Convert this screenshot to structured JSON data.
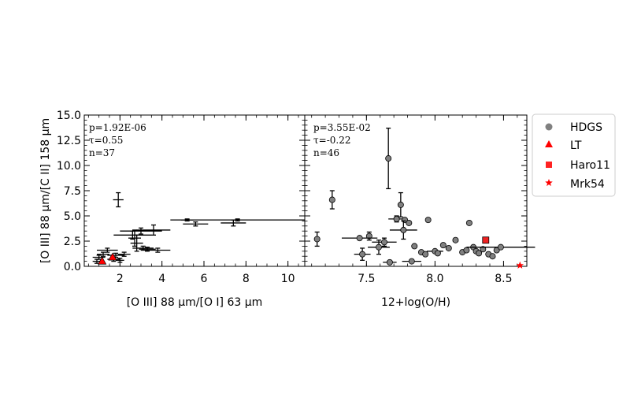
{
  "chart_data": [
    {
      "type": "scatter",
      "xlabel": "[O III] 88 μm/[O I] 63 μm",
      "ylabel": "[O III] 88 μm/[C II] 158 μm",
      "xlim": [
        0.3,
        10.8
      ],
      "ylim": [
        0,
        15
      ],
      "xticks": [
        "2",
        "4",
        "6",
        "8",
        "10"
      ],
      "yticks": [
        "0.0",
        "2.5",
        "5.0",
        "7.5",
        "10.0",
        "12.5",
        "15.0"
      ],
      "stats": [
        "p=1.92E-06",
        "τ=0.55",
        "n=37"
      ],
      "series": [
        {
          "name": "HDGS",
          "points": [
            {
              "x": 1.92,
              "y": 6.6,
              "xerr": 0.25,
              "yerr": 0.7
            },
            {
              "x": 2.6,
              "y": 3.1,
              "xerr": 0.9,
              "yerr": 0.4
            },
            {
              "x": 2.7,
              "y": 2.8,
              "xerr": 0.3,
              "yerr": 0.8
            },
            {
              "x": 2.8,
              "y": 2.3,
              "xerr": 0.3,
              "yerr": 0.8
            },
            {
              "x": 3.0,
              "y": 3.5,
              "xerr": 1.0,
              "yerr": 0.3
            },
            {
              "x": 3.6,
              "y": 3.6,
              "xerr": 0.8,
              "yerr": 0.5
            },
            {
              "x": 3.1,
              "y": 1.8,
              "xerr": 0.5,
              "yerr": 0.2
            },
            {
              "x": 3.3,
              "y": 1.7,
              "xerr": 0.4,
              "yerr": 0.2
            },
            {
              "x": 3.8,
              "y": 1.6,
              "xerr": 0.6,
              "yerr": 0.2
            },
            {
              "x": 2.2,
              "y": 1.2,
              "xerr": 0.3,
              "yerr": 0.2
            },
            {
              "x": 1.8,
              "y": 1.1,
              "xerr": 0.4,
              "yerr": 0.2
            },
            {
              "x": 1.4,
              "y": 1.6,
              "xerr": 0.5,
              "yerr": 0.2
            },
            {
              "x": 1.2,
              "y": 1.2,
              "xerr": 0.3,
              "yerr": 0.2
            },
            {
              "x": 1.0,
              "y": 0.9,
              "xerr": 0.3,
              "yerr": 0.2
            },
            {
              "x": 1.7,
              "y": 0.7,
              "xerr": 0.3,
              "yerr": 0.2
            },
            {
              "x": 2.0,
              "y": 0.6,
              "xerr": 0.2,
              "yerr": 0.2
            },
            {
              "x": 0.9,
              "y": 0.5,
              "xerr": 0.2,
              "yerr": 0.2
            },
            {
              "x": 5.6,
              "y": 4.2,
              "xerr": 0.6,
              "yerr": 0.2
            },
            {
              "x": 7.4,
              "y": 4.3,
              "xerr": 0.6,
              "yerr": 0.3
            },
            {
              "x": 5.2,
              "y": 4.6,
              "xerr": 0.3,
              "yerr": 0.1
            },
            {
              "x": 7.6,
              "y": 4.6,
              "xerr": 3.2,
              "yerr": 0.1
            }
          ]
        },
        {
          "name": "LT",
          "points": [
            {
              "x": 1.15,
              "y": 0.45
            },
            {
              "x": 1.65,
              "y": 0.85
            }
          ]
        }
      ]
    },
    {
      "type": "scatter",
      "xlabel": "12+log(O/H)",
      "ylabel": "",
      "xlim": [
        7.05,
        8.67
      ],
      "ylim": [
        0,
        15
      ],
      "xticks": [
        "7.5",
        "8.0",
        "8.5"
      ],
      "stats": [
        "p=3.55E-02",
        "τ=-0.22",
        "n=46"
      ],
      "series": [
        {
          "name": "HDGS",
          "points": [
            {
              "x": 7.14,
              "y": 2.7,
              "yerr": 0.7
            },
            {
              "x": 7.25,
              "y": 6.6,
              "yerr": 0.9
            },
            {
              "x": 7.66,
              "y": 10.7,
              "yerr": 3.0
            },
            {
              "x": 7.75,
              "y": 6.1,
              "yerr": 1.2
            },
            {
              "x": 7.72,
              "y": 4.7,
              "xerr": 0.06,
              "yerr": 0.3
            },
            {
              "x": 7.78,
              "y": 4.6
            },
            {
              "x": 7.81,
              "y": 4.3
            },
            {
              "x": 7.95,
              "y": 4.6
            },
            {
              "x": 7.77,
              "y": 3.6,
              "xerr": 0.1,
              "yerr": 0.9
            },
            {
              "x": 7.52,
              "y": 3.0,
              "yerr": 0.4
            },
            {
              "x": 7.59,
              "y": 1.9,
              "xerr": 0.08,
              "yerr": 0.7
            },
            {
              "x": 7.63,
              "y": 2.4,
              "xerr": 0.09,
              "yerr": 0.4
            },
            {
              "x": 7.45,
              "y": 2.8,
              "xerr": 0.13
            },
            {
              "x": 7.47,
              "y": 1.2,
              "xerr": 0.06,
              "yerr": 0.6
            },
            {
              "x": 7.85,
              "y": 2.0
            },
            {
              "x": 7.9,
              "y": 1.4
            },
            {
              "x": 7.93,
              "y": 1.2
            },
            {
              "x": 8.0,
              "y": 1.5,
              "xerr": 0.06
            },
            {
              "x": 8.02,
              "y": 1.3
            },
            {
              "x": 8.06,
              "y": 2.1
            },
            {
              "x": 8.1,
              "y": 1.8
            },
            {
              "x": 8.15,
              "y": 2.6
            },
            {
              "x": 8.2,
              "y": 1.4
            },
            {
              "x": 8.23,
              "y": 1.6
            },
            {
              "x": 8.25,
              "y": 4.3
            },
            {
              "x": 8.28,
              "y": 1.9
            },
            {
              "x": 8.3,
              "y": 1.5
            },
            {
              "x": 8.32,
              "y": 1.3
            },
            {
              "x": 8.35,
              "y": 1.7
            },
            {
              "x": 8.39,
              "y": 1.2
            },
            {
              "x": 8.42,
              "y": 1.0
            },
            {
              "x": 8.45,
              "y": 1.6
            },
            {
              "x": 8.48,
              "y": 1.9,
              "xerr": 0.25
            },
            {
              "x": 7.67,
              "y": 0.4,
              "xerr": 0.05
            },
            {
              "x": 7.83,
              "y": 0.5,
              "xerr": 0.07
            }
          ]
        },
        {
          "name": "Haro11",
          "points": [
            {
              "x": 8.37,
              "y": 2.6
            }
          ]
        },
        {
          "name": "Mrk54",
          "points": [
            {
              "x": 8.62,
              "y": 0.1
            }
          ]
        }
      ]
    }
  ],
  "legend": [
    {
      "label": "HDGS",
      "marker": "circle",
      "color": "#808080"
    },
    {
      "label": "LT",
      "marker": "triangle",
      "color": "#ff0000"
    },
    {
      "label": "Haro11",
      "marker": "square",
      "color": "#ff2222"
    },
    {
      "label": "Mrk54",
      "marker": "star",
      "color": "#ff0000"
    }
  ],
  "colors": {
    "hdgs_fill": "#808080",
    "lt": "#ff0000",
    "haro11": "#ee2222",
    "mrk54": "#ff0000",
    "axis": "#000000"
  }
}
